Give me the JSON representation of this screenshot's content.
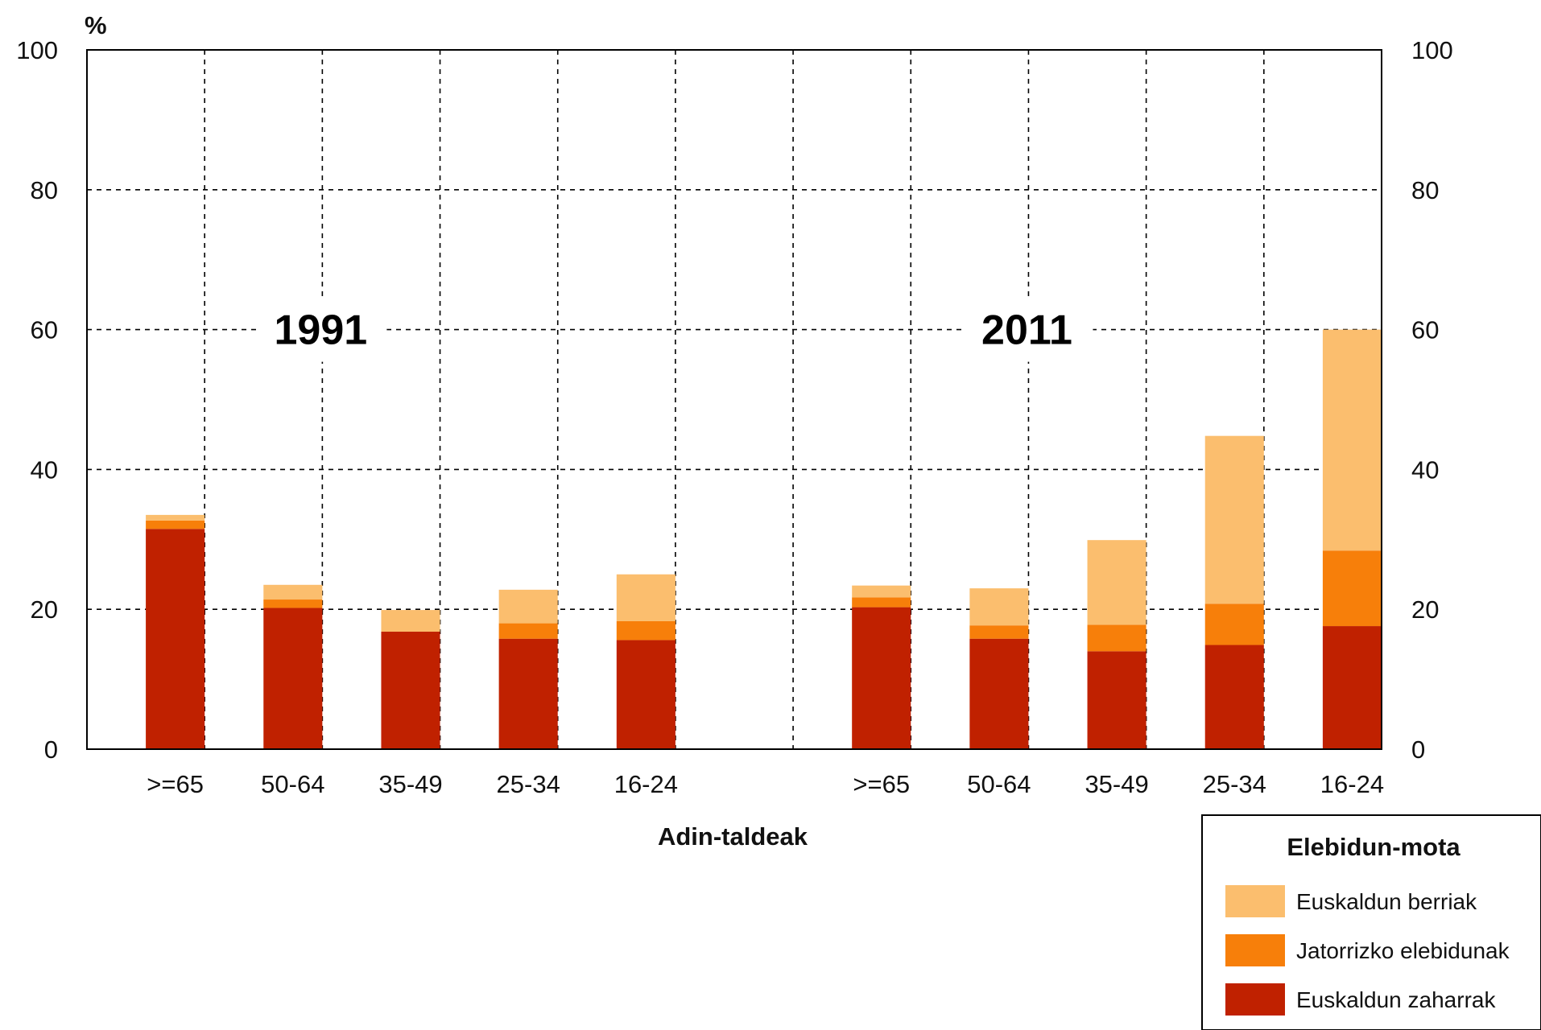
{
  "chart_data": {
    "type": "bar",
    "stacked": true,
    "y_unit_label": "%",
    "xlabel": "Adin-taldeak",
    "ylim": [
      0,
      100
    ],
    "yticks": [
      0,
      20,
      40,
      60,
      80,
      100
    ],
    "grid": true,
    "groups": [
      {
        "label": "1991",
        "categories": [
          ">=65",
          "50-64",
          "35-49",
          "25-34",
          "16-24"
        ],
        "series": [
          {
            "name": "Euskaldun zaharrak",
            "values": [
              31.5,
              20.2,
              16.8,
              15.8,
              15.6
            ]
          },
          {
            "name": "Jatorrizko elebidunak",
            "values": [
              1.2,
              1.2,
              0.0,
              2.2,
              2.7
            ]
          },
          {
            "name": "Euskaldun berriak",
            "values": [
              0.8,
              2.1,
              3.1,
              4.8,
              6.7
            ]
          }
        ]
      },
      {
        "label": "2011",
        "categories": [
          ">=65",
          "50-64",
          "35-49",
          "25-34",
          "16-24"
        ],
        "series": [
          {
            "name": "Euskaldun zaharrak",
            "values": [
              20.3,
              15.8,
              14.0,
              14.9,
              17.6
            ]
          },
          {
            "name": "Jatorrizko elebidunak",
            "values": [
              1.4,
              1.9,
              3.8,
              5.9,
              10.8
            ]
          },
          {
            "name": "Euskaldun berriak",
            "values": [
              1.7,
              5.3,
              12.1,
              24.0,
              31.6
            ]
          }
        ]
      }
    ],
    "legend": {
      "title": "Elebidun-mota",
      "position": "bottom-right",
      "items": [
        {
          "name": "Euskaldun berriak",
          "color": "#FBBE6E"
        },
        {
          "name": "Jatorrizko elebidunak",
          "color": "#F77F0A"
        },
        {
          "name": "Euskaldun zaharrak",
          "color": "#C02100"
        }
      ]
    },
    "colors": {
      "Euskaldun zaharrak": "#C02100",
      "Jatorrizko elebidunak": "#F77F0A",
      "Euskaldun berriak": "#FBBE6E"
    }
  }
}
